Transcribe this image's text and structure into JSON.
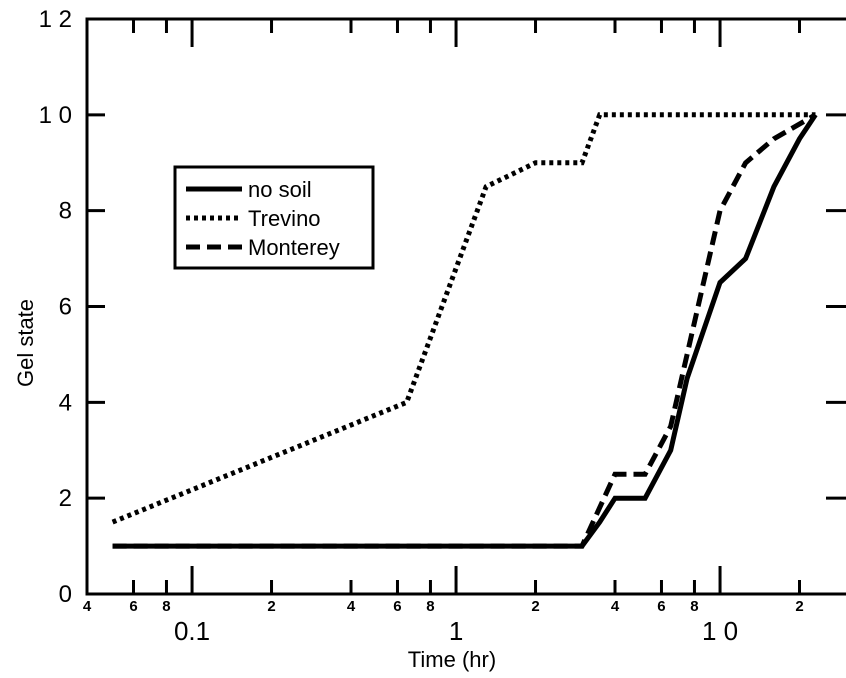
{
  "chart_data": {
    "type": "line",
    "xlabel": "Time  (hr)",
    "ylabel": "Gel state",
    "xscale": "log",
    "xlim": [
      0.04,
      30
    ],
    "ylim": [
      0,
      12
    ],
    "yticks": [
      {
        "value": 0,
        "label": "0"
      },
      {
        "value": 2,
        "label": "2"
      },
      {
        "value": 4,
        "label": "4"
      },
      {
        "value": 6,
        "label": "6"
      },
      {
        "value": 8,
        "label": "8"
      },
      {
        "value": 10,
        "label": "1 0"
      },
      {
        "value": 12,
        "label": "1 2"
      }
    ],
    "xticks_major": [
      {
        "value": 0.1,
        "label": "0.1"
      },
      {
        "value": 1,
        "label": "1"
      },
      {
        "value": 10,
        "label": "1 0"
      }
    ],
    "xticks_minor": [
      {
        "value": 0.04,
        "label": "4"
      },
      {
        "value": 0.06,
        "label": "6"
      },
      {
        "value": 0.08,
        "label": "8"
      },
      {
        "value": 0.2,
        "label": "2"
      },
      {
        "value": 0.4,
        "label": "4"
      },
      {
        "value": 0.6,
        "label": "6"
      },
      {
        "value": 0.8,
        "label": "8"
      },
      {
        "value": 2,
        "label": "2"
      },
      {
        "value": 4,
        "label": "4"
      },
      {
        "value": 6,
        "label": "6"
      },
      {
        "value": 8,
        "label": "8"
      },
      {
        "value": 20,
        "label": "2"
      }
    ],
    "legend_position": "upper-left",
    "grid": false,
    "series": [
      {
        "name": "no soil",
        "style": "solid",
        "x": [
          0.05,
          3.0,
          3.5,
          4.0,
          5.2,
          6.5,
          7.5,
          10.0,
          12.5,
          16.0,
          20.0,
          23.0
        ],
        "y": [
          1,
          1,
          1.5,
          2,
          2,
          3,
          4.5,
          6.5,
          7,
          8.5,
          9.5,
          10
        ]
      },
      {
        "name": "Trevino",
        "style": "dotted",
        "x": [
          0.05,
          0.65,
          1.3,
          2.0,
          3.0,
          3.5,
          23.0
        ],
        "y": [
          1.5,
          4,
          8.5,
          9,
          9,
          10,
          10
        ]
      },
      {
        "name": "Monterey",
        "style": "dashed",
        "x": [
          0.05,
          3.0,
          4.0,
          5.2,
          6.5,
          7.5,
          10.0,
          12.5,
          16.0,
          23.0
        ],
        "y": [
          1,
          1,
          2.5,
          2.5,
          3.5,
          5,
          8,
          9,
          9.5,
          10
        ]
      }
    ]
  }
}
